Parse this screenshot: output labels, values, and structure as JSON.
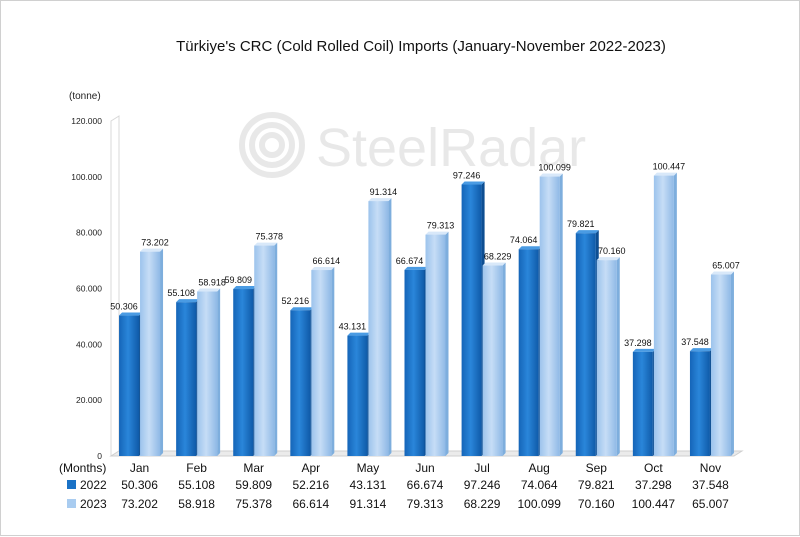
{
  "chart_data": {
    "type": "bar",
    "title": "Türkiye's CRC (Cold Rolled Coil) Imports (January-November 2022-2023)",
    "ylabel": "(tonne)",
    "xlabel": "(Months)",
    "watermark": "SteelRadar",
    "categories": [
      "Jan",
      "Feb",
      "Mar",
      "Apr",
      "May",
      "Jun",
      "Jul",
      "Aug",
      "Sep",
      "Oct",
      "Nov"
    ],
    "ylim": [
      0,
      120000
    ],
    "yticks": [
      0,
      20000,
      40000,
      60000,
      80000,
      100000,
      120000
    ],
    "ytick_labels": [
      "0",
      "20.000",
      "40.000",
      "60.000",
      "80.000",
      "100.000",
      "120.000"
    ],
    "grid": false,
    "legend": "bottom data table",
    "series": [
      {
        "name": "2022",
        "color": "#1A72C6",
        "values": [
          50306,
          55108,
          59809,
          52216,
          43131,
          66674,
          97246,
          74064,
          79821,
          37298,
          37548
        ],
        "labels": [
          "50.306",
          "55.108",
          "59.809",
          "52.216",
          "43.131",
          "66.674",
          "97.246",
          "74.064",
          "79.821",
          "37.298",
          "37.548"
        ]
      },
      {
        "name": "2023",
        "color": "#A9CCF0",
        "values": [
          73202,
          58918,
          75378,
          66614,
          91314,
          79313,
          68229,
          100099,
          70160,
          100447,
          65007
        ],
        "labels": [
          "73.202",
          "58.918",
          "75.378",
          "66.614",
          "91.314",
          "79.313",
          "68.229",
          "100.099",
          "70.160",
          "100.447",
          "65.007"
        ]
      }
    ]
  }
}
